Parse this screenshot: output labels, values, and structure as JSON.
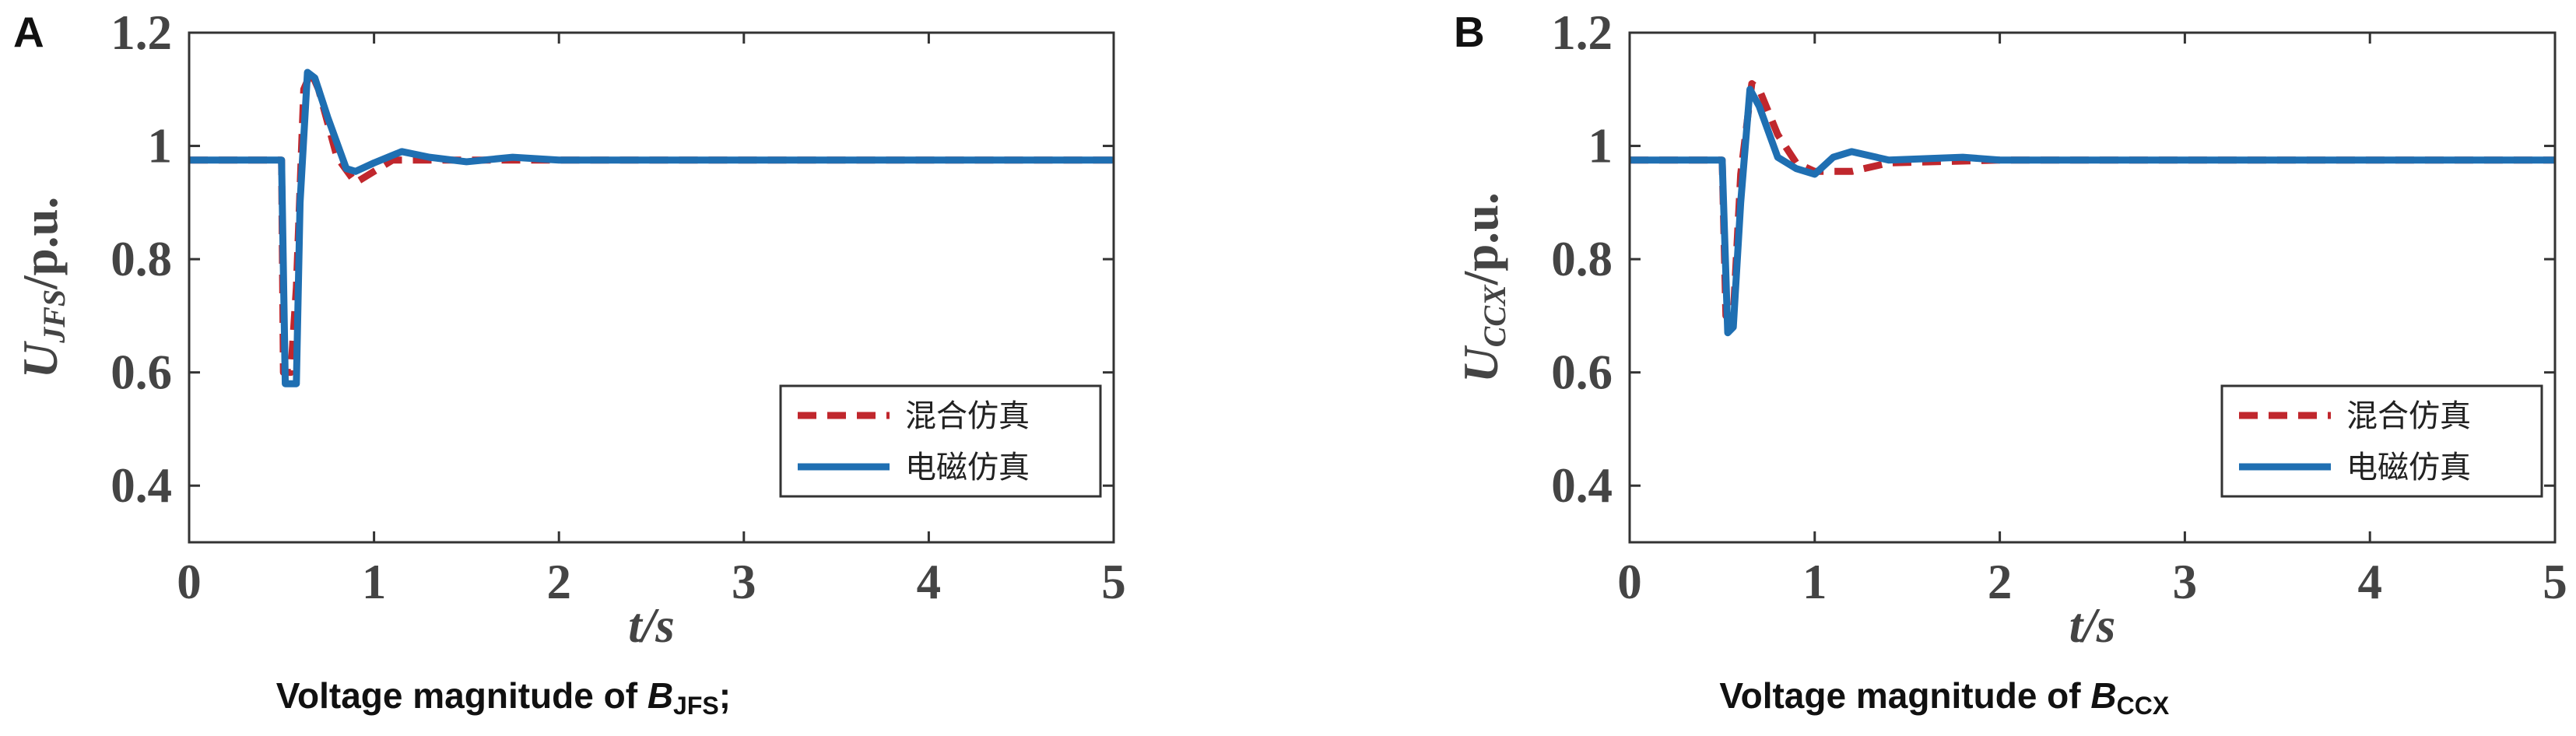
{
  "chart_data": [
    {
      "type": "line",
      "panel": "A",
      "y_label": {
        "main": "U",
        "sub": "JFS",
        "unit": "/p.u."
      },
      "x_label": "t/s",
      "caption": {
        "text": "Voltage magnitude of ",
        "symbol": "B",
        "sub": "JFS",
        "end": ";"
      },
      "xlim": [
        0,
        5
      ],
      "xticks": [
        0,
        1,
        2,
        3,
        4,
        5
      ],
      "ylim": [
        0.3,
        1.2
      ],
      "yticks": [
        0.4,
        0.6,
        0.8,
        1,
        1.2
      ],
      "legend": "lower right",
      "series": [
        {
          "name": "混合仿真",
          "color": "#c0272d",
          "dashed": true,
          "x": [
            0,
            0.5,
            0.51,
            0.55,
            0.58,
            0.62,
            0.66,
            0.7,
            0.8,
            0.9,
            1.0,
            1.1,
            1.3,
            1.5,
            2,
            5
          ],
          "values": [
            0.975,
            0.975,
            0.6,
            0.6,
            0.75,
            1.1,
            1.13,
            1.1,
            0.98,
            0.935,
            0.955,
            0.975,
            0.975,
            0.975,
            0.975,
            0.975
          ]
        },
        {
          "name": "电磁仿真",
          "color": "#1f6fb2",
          "dashed": false,
          "x": [
            0,
            0.5,
            0.52,
            0.58,
            0.6,
            0.64,
            0.68,
            0.75,
            0.85,
            0.9,
            1.0,
            1.15,
            1.3,
            1.5,
            1.75,
            2,
            5
          ],
          "values": [
            0.975,
            0.975,
            0.58,
            0.58,
            0.9,
            1.13,
            1.12,
            1.05,
            0.96,
            0.955,
            0.97,
            0.99,
            0.98,
            0.972,
            0.98,
            0.975,
            0.975
          ]
        }
      ]
    },
    {
      "type": "line",
      "panel": "B",
      "y_label": {
        "main": "U",
        "sub": "CCX",
        "unit": "/p.u."
      },
      "x_label": "t/s",
      "caption": {
        "text": "Voltage magnitude of ",
        "symbol": "B",
        "sub": "CCX"
      },
      "xlim": [
        0,
        5
      ],
      "xticks": [
        0,
        1,
        2,
        3,
        4,
        5
      ],
      "ylim": [
        0.3,
        1.2
      ],
      "yticks": [
        0.4,
        0.6,
        0.8,
        1,
        1.2
      ],
      "legend": "lower right",
      "series": [
        {
          "name": "混合仿真",
          "color": "#c0272d",
          "dashed": true,
          "x": [
            0,
            0.5,
            0.52,
            0.56,
            0.6,
            0.66,
            0.7,
            0.8,
            0.9,
            1.0,
            1.2,
            1.4,
            2,
            5
          ],
          "values": [
            0.975,
            0.975,
            0.7,
            0.7,
            0.95,
            1.11,
            1.1,
            1.02,
            0.97,
            0.955,
            0.955,
            0.97,
            0.975,
            0.975
          ]
        },
        {
          "name": "电磁仿真",
          "color": "#1f6fb2",
          "dashed": false,
          "x": [
            0,
            0.5,
            0.53,
            0.56,
            0.6,
            0.65,
            0.7,
            0.8,
            0.9,
            1.0,
            1.1,
            1.2,
            1.4,
            1.8,
            2,
            5
          ],
          "values": [
            0.975,
            0.975,
            0.67,
            0.68,
            0.9,
            1.1,
            1.07,
            0.98,
            0.96,
            0.95,
            0.98,
            0.99,
            0.975,
            0.98,
            0.975,
            0.975
          ]
        }
      ]
    }
  ]
}
